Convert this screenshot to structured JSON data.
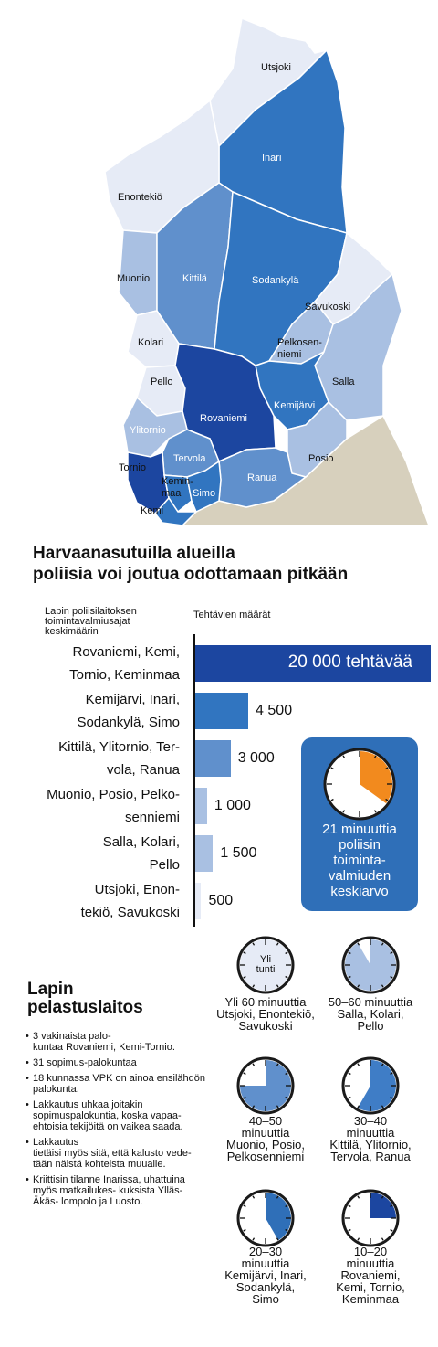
{
  "map": {
    "regions": {
      "utsjoki": "Utsjoki",
      "inari": "Inari",
      "enontekio": "Enontekiö",
      "muonio": "Muonio",
      "kittila": "Kittilä",
      "sodankyla": "Sodankylä",
      "savukoski": "Savukoski",
      "kolari": "Kolari",
      "pelkosenniemi_1": "Pelkosen-",
      "pelkosenniemi_2": "niemi",
      "pello": "Pello",
      "salla": "Salla",
      "kemijarvi": "Kemijärvi",
      "rovaniemi": "Rovaniemi",
      "ylitornio": "Ylitornio",
      "tervola": "Tervola",
      "posio": "Posio",
      "tornio": "Tornio",
      "keminmaa_1": "Kemin-",
      "keminmaa_2": "maa",
      "ranua": "Ranua",
      "simo": "Simo",
      "kemi": "Kemi"
    },
    "colors": {
      "lightest": "#e6ebf6",
      "light": "#a9c0e2",
      "medium": "#6090cc",
      "dark": "#3175c0",
      "darkest": "#1c46a0",
      "other_land": "#d7d0bd"
    }
  },
  "headline": {
    "line1": "Harvaanasutuilla alueilla",
    "line2": "poliisia voi joutua odottamaan pitkään"
  },
  "chart": {
    "left_header_1": "Lapin poliisilaitoksen",
    "left_header_2": "toimintavalmiusajat",
    "left_header_3": "keskimäärin",
    "right_header": "Tehtävien määrät"
  },
  "chart_data": {
    "type": "bar",
    "title": "Tehtävien määrät",
    "categories": [
      [
        "Rovaniemi, Kemi,",
        "Tornio, Keminmaa"
      ],
      [
        "Kemijärvi, Inari,",
        "Sodankylä, Simo"
      ],
      [
        "Kittilä, Ylitornio, Ter-",
        "vola, Ranua"
      ],
      [
        "Muonio, Posio, Pelko-",
        "senniemi"
      ],
      [
        "Salla, Kolari,",
        "Pello"
      ],
      [
        "Utsjoki, Enon-",
        "tekiö, Savukoski"
      ]
    ],
    "values": [
      20000,
      4500,
      3000,
      1000,
      1500,
      500
    ],
    "value_labels": [
      "20 000 tehtävää",
      "4 500",
      "3 000",
      "1 000",
      "1 500",
      "500"
    ],
    "colors": [
      "#1c46a0",
      "#3175c0",
      "#6090cc",
      "#a9c0e2",
      "#a9c0e2",
      "#e6ebf6"
    ],
    "xlim": [
      0,
      20000
    ]
  },
  "average": {
    "minutes": 21,
    "color": "#f28a1e",
    "line1": "21 minuuttia",
    "line2": "poliisin",
    "line3": "toiminta-",
    "line4": "valmiuden",
    "line5": "keskiarvo"
  },
  "clocks": [
    {
      "minutes": 60,
      "color": "#e6ebf6",
      "inner_1": "Yli",
      "inner_2": "tunti",
      "line1": "Yli 60 minuuttia",
      "line2": "Utsjoki, Enontekiö,",
      "line3": "Savukoski",
      "line4": ""
    },
    {
      "minutes": 55,
      "color": "#a9c0e2",
      "inner_1": "",
      "inner_2": "",
      "line1": "50–60 minuuttia",
      "line2": "Salla, Kolari,",
      "line3": "Pello",
      "line4": ""
    },
    {
      "minutes": 45,
      "color": "#6090cc",
      "inner_1": "",
      "inner_2": "",
      "line1": "40–50",
      "line2": "minuuttia",
      "line3": "Muonio, Posio,",
      "line4": "Pelkosenniemi"
    },
    {
      "minutes": 35,
      "color": "#3f7dc6",
      "inner_1": "",
      "inner_2": "",
      "line1": "30–40",
      "line2": "minuuttia",
      "line3": "Kittilä, Ylitornio,",
      "line4": "Tervola, Ranua"
    },
    {
      "minutes": 25,
      "color": "#2f6fb8",
      "inner_1": "",
      "inner_2": "",
      "line1": "20–30",
      "line2": "minuuttia",
      "line3": "Kemijärvi, Inari,",
      "line4": "Sodankylä,",
      "line5": "Simo"
    },
    {
      "minutes": 15,
      "color": "#1c46a0",
      "inner_1": "",
      "inner_2": "",
      "line1": "10–20",
      "line2": "minuuttia",
      "line3": "Rovaniemi,",
      "line4": "Kemi, Tornio,",
      "line5": "Keminmaa"
    }
  ],
  "rescue": {
    "title_1": "Lapin",
    "title_2": "pelastuslaitos",
    "bullets": [
      "3 vakinaista palo-\nkuntaa Rovaniemi, Kemi-Tornio.",
      "31 sopimus-palokuntaa",
      "18 kunnassa VPK on ainoa ensilähdön palokunta.",
      "Lakkautus uhkaa joitakin sopimuspalokuntia, koska vapaa- ehtoisia tekijöitä on vaikea saada.",
      "Lakkautus\ntietäisi myös sitä, että kalusto vede-\ntään näistä kohteista muualle.",
      "Kriittisin tilanne Inarissa, uhattuina myös matkailukes- kuksista Ylläs-Äkäs- lompolo ja Luosto."
    ]
  }
}
